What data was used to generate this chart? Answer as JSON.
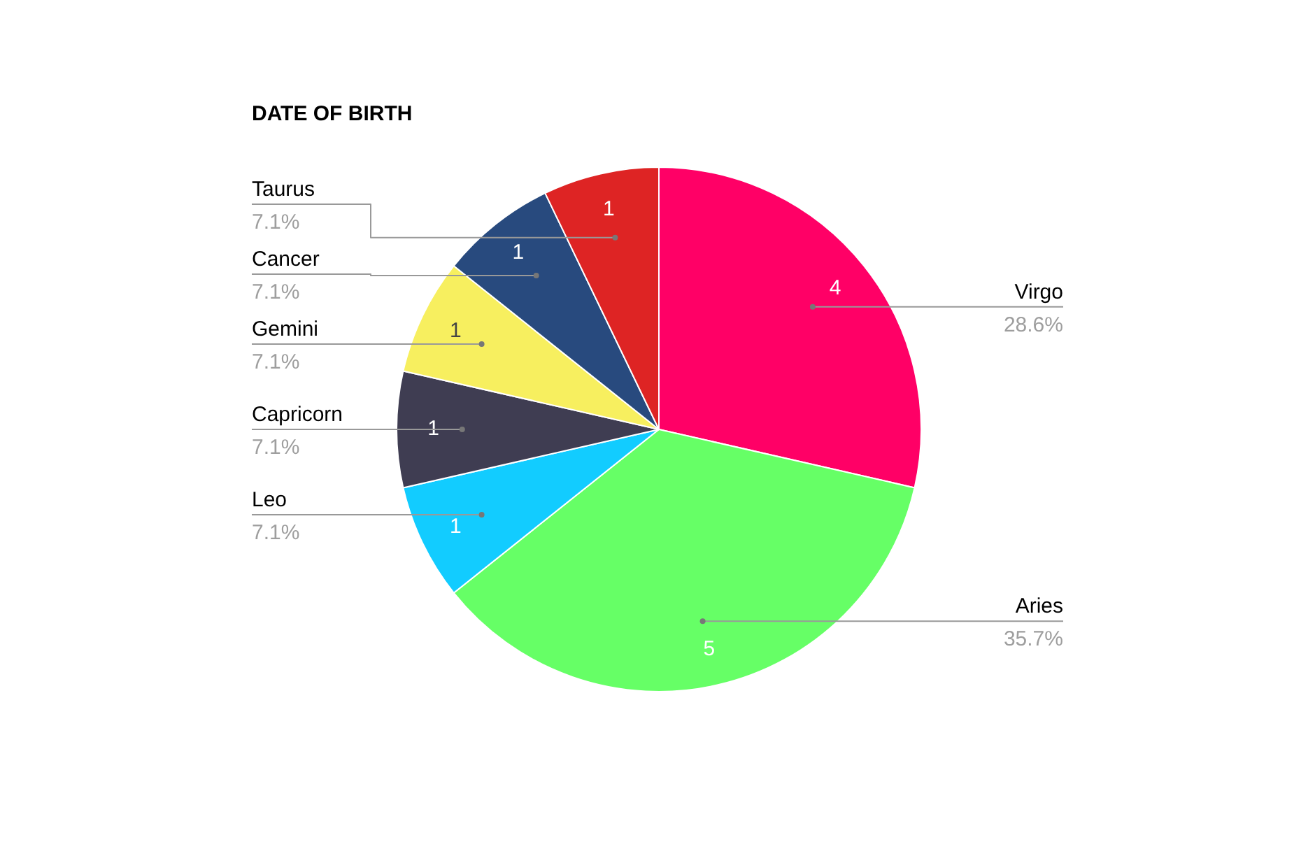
{
  "chart_data": {
    "type": "pie",
    "title": "DATE OF BIRTH",
    "categories": [
      "Virgo",
      "Aries",
      "Leo",
      "Capricorn",
      "Gemini",
      "Cancer",
      "Taurus"
    ],
    "values": [
      4,
      5,
      1,
      1,
      1,
      1,
      1
    ],
    "colors": [
      "#ff0066",
      "#66ff66",
      "#12ccff",
      "#3f3d52",
      "#f7ef5f",
      "#284a7e",
      "#de2424"
    ],
    "data_labels": true,
    "annotations": [
      "28.6%",
      "35.7%",
      "7.1%",
      "7.1%",
      "7.1%",
      "7.1%",
      "7.1%"
    ],
    "legend": false
  }
}
